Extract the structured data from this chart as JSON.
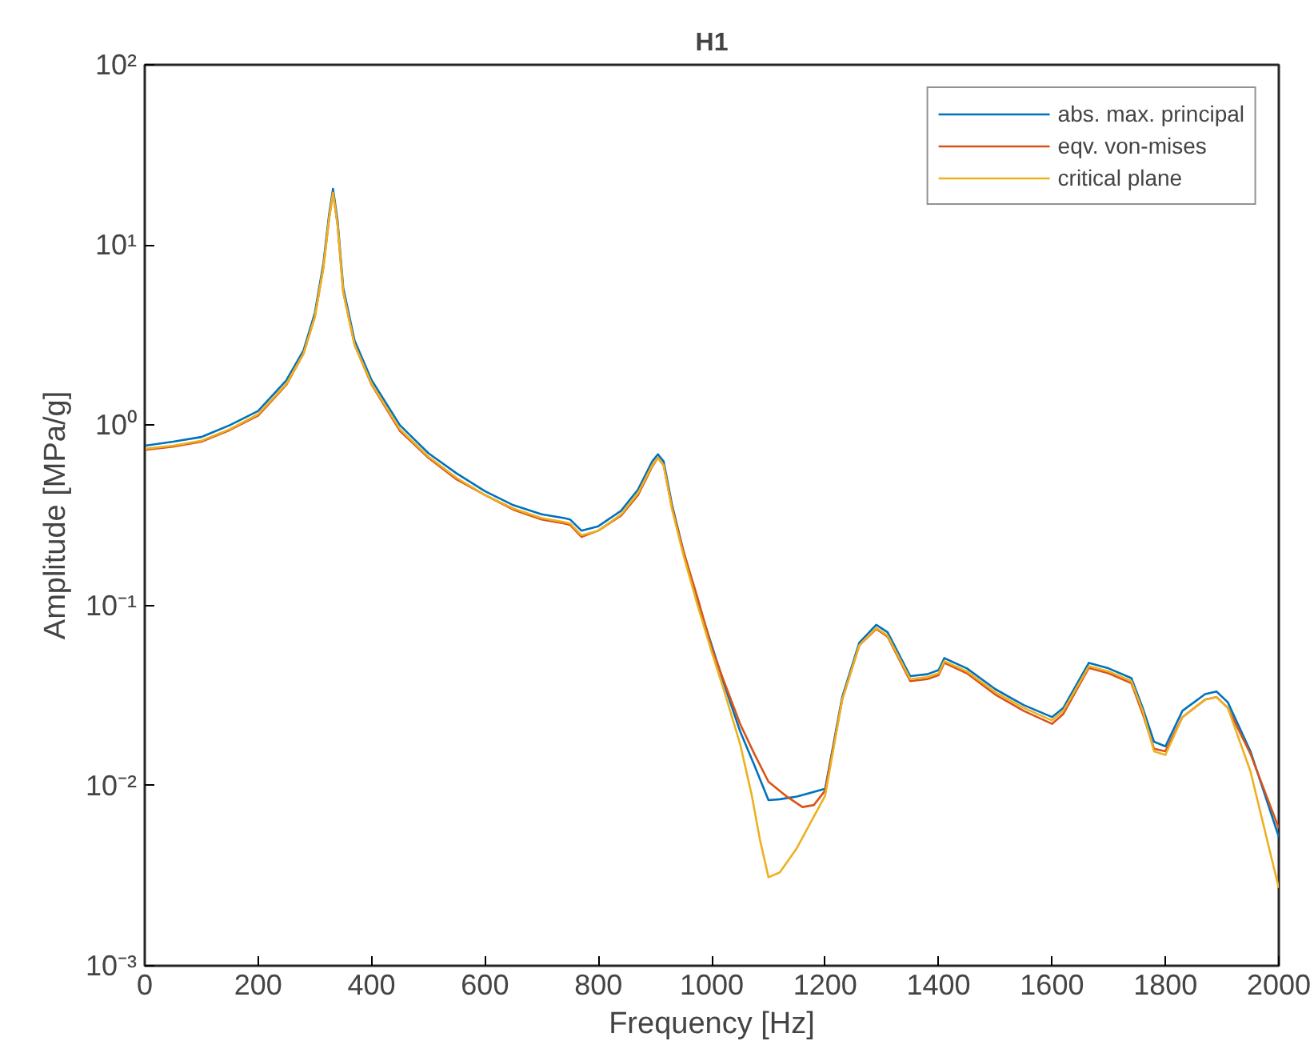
{
  "chart_data": {
    "type": "line",
    "title": "H1",
    "xlabel": "Frequency [Hz]",
    "ylabel": "Amplitude [MPa/g]",
    "log": "y",
    "grid": false,
    "legend": "top right",
    "line_style": "solid",
    "marker": "none",
    "xlim": [
      0,
      2000
    ],
    "xticks": [
      0,
      200,
      400,
      600,
      800,
      1000,
      1200,
      1400,
      1600,
      1800,
      2000
    ],
    "ylim": [
      0.001,
      100
    ],
    "yticks": [
      {
        "value": 0.001,
        "label": "10⁻³"
      },
      {
        "value": 0.01,
        "label": "10⁻²"
      },
      {
        "value": 0.1,
        "label": "10⁻¹"
      },
      {
        "value": 1,
        "label": "10⁰"
      },
      {
        "value": 10,
        "label": "10¹"
      },
      {
        "value": 100,
        "label": "10²"
      }
    ],
    "series": [
      {
        "name": "abs. max. principal",
        "color": "#0072bd",
        "x": [
          0,
          50,
          100,
          150,
          200,
          250,
          280,
          300,
          315,
          325,
          332,
          340,
          350,
          370,
          400,
          450,
          500,
          550,
          600,
          650,
          700,
          740,
          750,
          770,
          800,
          840,
          870,
          895,
          905,
          915,
          930,
          950,
          975,
          1000,
          1020,
          1050,
          1075,
          1100,
          1120,
          1150,
          1200,
          1230,
          1260,
          1290,
          1310,
          1350,
          1380,
          1400,
          1410,
          1450,
          1500,
          1550,
          1600,
          1620,
          1665,
          1700,
          1740,
          1760,
          1780,
          1800,
          1830,
          1870,
          1890,
          1910,
          1950,
          2000
        ],
        "values": [
          0.77,
          0.81,
          0.86,
          1.0,
          1.2,
          1.78,
          2.6,
          4.2,
          7.9,
          14.7,
          20.5,
          13.7,
          5.8,
          2.95,
          1.78,
          1.0,
          0.7,
          0.54,
          0.43,
          0.36,
          0.32,
          0.305,
          0.3,
          0.26,
          0.275,
          0.335,
          0.44,
          0.63,
          0.69,
          0.63,
          0.36,
          0.2,
          0.105,
          0.06,
          0.038,
          0.02,
          0.013,
          0.0083,
          0.0084,
          0.0087,
          0.0096,
          0.031,
          0.062,
          0.078,
          0.071,
          0.0405,
          0.0415,
          0.0437,
          0.051,
          0.0447,
          0.0343,
          0.028,
          0.024,
          0.027,
          0.048,
          0.0447,
          0.0395,
          0.027,
          0.0175,
          0.0165,
          0.026,
          0.0322,
          0.0333,
          0.029,
          0.0155,
          0.0052
        ]
      },
      {
        "name": "eqv. von-mises",
        "color": "#d95319",
        "x": [
          0,
          50,
          100,
          150,
          200,
          250,
          280,
          300,
          315,
          325,
          332,
          340,
          350,
          370,
          400,
          450,
          500,
          550,
          600,
          650,
          700,
          740,
          750,
          770,
          800,
          840,
          870,
          895,
          905,
          915,
          930,
          950,
          975,
          1000,
          1020,
          1050,
          1075,
          1100,
          1130,
          1160,
          1180,
          1200,
          1230,
          1260,
          1290,
          1310,
          1350,
          1380,
          1400,
          1410,
          1450,
          1500,
          1550,
          1600,
          1620,
          1665,
          1700,
          1740,
          1760,
          1780,
          1800,
          1830,
          1870,
          1890,
          1910,
          1950,
          2000
        ],
        "values": [
          0.73,
          0.76,
          0.81,
          0.94,
          1.13,
          1.68,
          2.5,
          4.0,
          7.5,
          14,
          19.5,
          13,
          5.5,
          2.8,
          1.68,
          0.93,
          0.66,
          0.5,
          0.41,
          0.34,
          0.3,
          0.285,
          0.28,
          0.24,
          0.26,
          0.315,
          0.41,
          0.59,
          0.66,
          0.6,
          0.35,
          0.2,
          0.11,
          0.058,
          0.039,
          0.022,
          0.015,
          0.0105,
          0.0088,
          0.0076,
          0.0078,
          0.0094,
          0.03,
          0.06,
          0.074,
          0.067,
          0.038,
          0.039,
          0.041,
          0.048,
          0.042,
          0.032,
          0.026,
          0.022,
          0.025,
          0.045,
          0.042,
          0.037,
          0.025,
          0.016,
          0.0155,
          0.024,
          0.03,
          0.031,
          0.027,
          0.015,
          0.0058
        ]
      },
      {
        "name": "critical plane",
        "color": "#edb120",
        "x": [
          0,
          50,
          100,
          150,
          200,
          250,
          280,
          300,
          315,
          325,
          332,
          340,
          350,
          370,
          400,
          450,
          500,
          550,
          600,
          650,
          700,
          740,
          750,
          770,
          800,
          840,
          870,
          895,
          905,
          915,
          930,
          950,
          975,
          1000,
          1020,
          1050,
          1070,
          1085,
          1100,
          1120,
          1150,
          1200,
          1230,
          1260,
          1290,
          1310,
          1350,
          1380,
          1400,
          1410,
          1450,
          1500,
          1550,
          1600,
          1620,
          1665,
          1700,
          1740,
          1760,
          1780,
          1800,
          1830,
          1870,
          1890,
          1910,
          1950,
          2000
        ],
        "values": [
          0.74,
          0.77,
          0.82,
          0.95,
          1.15,
          1.7,
          2.5,
          4.0,
          7.5,
          14,
          19.5,
          13,
          5.5,
          2.8,
          1.7,
          0.95,
          0.67,
          0.51,
          0.41,
          0.345,
          0.305,
          0.29,
          0.285,
          0.245,
          0.26,
          0.32,
          0.42,
          0.6,
          0.66,
          0.6,
          0.34,
          0.19,
          0.1,
          0.055,
          0.035,
          0.017,
          0.009,
          0.005,
          0.0031,
          0.0033,
          0.0045,
          0.0088,
          0.03,
          0.06,
          0.075,
          0.068,
          0.039,
          0.04,
          0.042,
          0.049,
          0.043,
          0.033,
          0.027,
          0.023,
          0.026,
          0.046,
          0.043,
          0.038,
          0.026,
          0.0155,
          0.0148,
          0.024,
          0.03,
          0.031,
          0.027,
          0.012,
          0.0027
        ]
      }
    ]
  }
}
